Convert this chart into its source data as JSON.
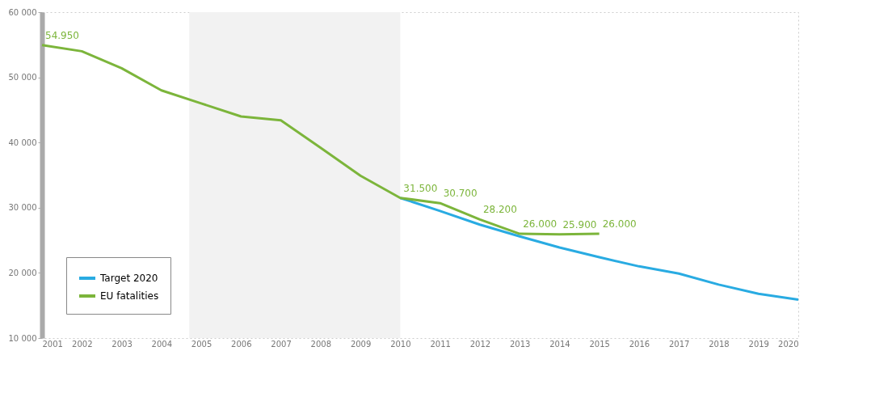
{
  "chart_data": {
    "type": "line",
    "x": [
      2001,
      2002,
      2003,
      2004,
      2005,
      2006,
      2007,
      2008,
      2009,
      2010,
      2011,
      2012,
      2013,
      2014,
      2015,
      2016,
      2017,
      2018,
      2019,
      2020
    ],
    "series": [
      {
        "name": "Target 2020",
        "color": "#29abe2",
        "values": [
          null,
          null,
          null,
          null,
          null,
          null,
          null,
          null,
          null,
          31500,
          29500,
          27400,
          25600,
          23900,
          22400,
          21000,
          19900,
          18200,
          16800,
          15900
        ]
      },
      {
        "name": "EU fatalities",
        "color": "#7cb53b",
        "values": [
          54950,
          54000,
          51400,
          48000,
          46000,
          44000,
          43400,
          39200,
          34900,
          31500,
          30700,
          28200,
          26000,
          25900,
          26000,
          null,
          null,
          null,
          null,
          null
        ],
        "value_labels": [
          "54.950",
          null,
          null,
          null,
          null,
          null,
          null,
          null,
          null,
          "31.500",
          "30.700",
          "28.200",
          "26.000",
          "25.900",
          "26.000",
          null,
          null,
          null,
          null,
          null
        ]
      }
    ],
    "xlim": [
      2001,
      2020
    ],
    "xticks": [
      2001,
      2002,
      2003,
      2004,
      2005,
      2006,
      2007,
      2008,
      2009,
      2010,
      2011,
      2012,
      2013,
      2014,
      2015,
      2016,
      2017,
      2018,
      2019,
      2020
    ],
    "ylim": [
      10000,
      60000
    ],
    "yticks": [
      {
        "value": 10000,
        "label": "10 000"
      },
      {
        "value": 20000,
        "label": "20 000"
      },
      {
        "value": 30000,
        "label": "30 000"
      },
      {
        "value": 40000,
        "label": "40 000"
      },
      {
        "value": 50000,
        "label": "50 000"
      },
      {
        "value": 60000,
        "label": "60 000"
      }
    ],
    "bands": [
      {
        "axis": "x",
        "from": 2004.7,
        "to": 2010,
        "color": "#f2f2f2"
      }
    ],
    "legend": "bottom left",
    "grid": false,
    "marker": "none",
    "line_style": "solid"
  }
}
